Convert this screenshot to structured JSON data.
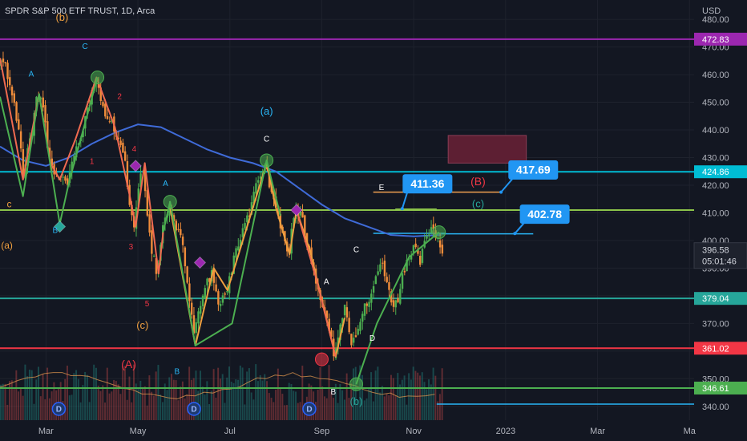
{
  "header": {
    "title": "SPDR S&P 500 ETF TRUST, 1D, Arca"
  },
  "chart_data": {
    "type": "candlestick",
    "currency": "USD",
    "y_range": [
      335,
      487
    ],
    "y_ticks": [
      340,
      350,
      360,
      370,
      380,
      390,
      400,
      410,
      420,
      430,
      440,
      450,
      460,
      470,
      480
    ],
    "x_ticks": [
      {
        "label": "Mar",
        "t": 1.0
      },
      {
        "label": "May",
        "t": 3.0
      },
      {
        "label": "Jul",
        "t": 5.0
      },
      {
        "label": "Sep",
        "t": 7.0
      },
      {
        "label": "Nov",
        "t": 9.0
      },
      {
        "label": "2023",
        "t": 11.0
      },
      {
        "label": "Mar",
        "t": 13.0
      },
      {
        "label": "Ma",
        "t": 15.0
      }
    ],
    "x_range": [
      0,
      15.1
    ],
    "last_data_t": 10.2,
    "price_path": [
      [
        0.0,
        463
      ],
      [
        0.12,
        466
      ],
      [
        0.3,
        452
      ],
      [
        0.45,
        440
      ],
      [
        0.52,
        422
      ],
      [
        0.7,
        438
      ],
      [
        0.85,
        453
      ],
      [
        1.0,
        446
      ],
      [
        1.1,
        428
      ],
      [
        1.3,
        424
      ],
      [
        1.5,
        421
      ],
      [
        1.65,
        431
      ],
      [
        1.8,
        437
      ],
      [
        2.0,
        452
      ],
      [
        2.12,
        459
      ],
      [
        2.3,
        447
      ],
      [
        2.5,
        441
      ],
      [
        2.6,
        437
      ],
      [
        2.75,
        427
      ],
      [
        2.85,
        414
      ],
      [
        2.95,
        405
      ],
      [
        3.1,
        428
      ],
      [
        3.2,
        415
      ],
      [
        3.3,
        398
      ],
      [
        3.45,
        388
      ],
      [
        3.55,
        403
      ],
      [
        3.7,
        412
      ],
      [
        3.85,
        405
      ],
      [
        4.0,
        398
      ],
      [
        4.15,
        380
      ],
      [
        4.25,
        365
      ],
      [
        4.35,
        375
      ],
      [
        4.5,
        385
      ],
      [
        4.65,
        388
      ],
      [
        4.8,
        375
      ],
      [
        4.95,
        382
      ],
      [
        5.1,
        392
      ],
      [
        5.3,
        403
      ],
      [
        5.45,
        410
      ],
      [
        5.6,
        419
      ],
      [
        5.8,
        428
      ],
      [
        5.9,
        420
      ],
      [
        6.0,
        412
      ],
      [
        6.15,
        405
      ],
      [
        6.3,
        395
      ],
      [
        6.45,
        411
      ],
      [
        6.6,
        408
      ],
      [
        6.75,
        396
      ],
      [
        6.9,
        385
      ],
      [
        7.05,
        375
      ],
      [
        7.2,
        367
      ],
      [
        7.3,
        358
      ],
      [
        7.45,
        372
      ],
      [
        7.55,
        377
      ],
      [
        7.65,
        361
      ],
      [
        7.75,
        366
      ],
      [
        7.9,
        374
      ],
      [
        8.05,
        379
      ],
      [
        8.2,
        387
      ],
      [
        8.35,
        392
      ],
      [
        8.5,
        380
      ],
      [
        8.65,
        376
      ],
      [
        8.75,
        385
      ],
      [
        8.9,
        394
      ],
      [
        9.05,
        398
      ],
      [
        9.15,
        392
      ],
      [
        9.3,
        401
      ],
      [
        9.45,
        404
      ],
      [
        9.55,
        401
      ],
      [
        9.65,
        396.58
      ]
    ],
    "moving_average": [
      [
        0.0,
        434
      ],
      [
        0.5,
        429
      ],
      [
        1.0,
        427
      ],
      [
        1.5,
        430
      ],
      [
        2.0,
        435
      ],
      [
        2.5,
        439
      ],
      [
        3.0,
        442
      ],
      [
        3.5,
        441
      ],
      [
        4.0,
        437
      ],
      [
        4.5,
        433
      ],
      [
        5.0,
        430
      ],
      [
        5.5,
        428
      ],
      [
        6.0,
        425
      ],
      [
        6.5,
        419
      ],
      [
        7.0,
        413
      ],
      [
        7.5,
        408
      ],
      [
        8.0,
        405
      ],
      [
        8.5,
        402
      ],
      [
        9.0,
        401.5
      ],
      [
        9.6,
        402
      ]
    ],
    "horizontal_levels": [
      {
        "value": 472.83,
        "label": "472.83",
        "color": "#9c27b0"
      },
      {
        "value": 424.86,
        "label": "424.86",
        "color": "#00bcd4"
      },
      {
        "value": 411,
        "label": "",
        "color": "#8bc34a"
      },
      {
        "value": 379.04,
        "label": "379.04",
        "color": "#26a69a"
      },
      {
        "value": 361.02,
        "label": "361.02",
        "color": "#f23645"
      },
      {
        "value": 346.61,
        "label": "346.61",
        "color": "#4caf50"
      }
    ],
    "segment_levels": [
      {
        "value": 417.5,
        "t_start": 8.12,
        "t_end": 10.9,
        "color": "#f0a050"
      },
      {
        "value": 411.36,
        "t_start": 8.6,
        "t_end": 9.5,
        "color": "#8bc34a"
      },
      {
        "value": 402.6,
        "t_start": 8.12,
        "t_end": 9.7,
        "color": "#29b6f6"
      },
      {
        "value": 402.4,
        "t_start": 9.6,
        "t_end": 11.6,
        "color": "#29b6f6"
      },
      {
        "value": 340.8,
        "t_start": 9.5,
        "t_end": 15.1,
        "color": "#29b6f6"
      }
    ],
    "zone": {
      "t_start": 9.75,
      "t_end": 11.45,
      "high": 438,
      "low": 428,
      "color": "#5d1f33"
    },
    "wave_paths": [
      {
        "color": "#f06a50",
        "points": [
          [
            0.0,
            466
          ],
          [
            0.5,
            422
          ],
          [
            0.85,
            453
          ],
          [
            1.1,
            428
          ],
          [
            1.3,
            422
          ],
          [
            1.65,
            437
          ],
          [
            2.1,
            459
          ],
          [
            2.5,
            441
          ],
          [
            2.85,
            414
          ],
          [
            2.95,
            405
          ],
          [
            3.15,
            428
          ],
          [
            3.45,
            388
          ],
          [
            3.55,
            403
          ]
        ]
      },
      {
        "color": "#4caf50",
        "points": [
          [
            0.0,
            452
          ],
          [
            0.5,
            416
          ],
          [
            0.85,
            453
          ],
          [
            1.3,
            406
          ],
          [
            1.5,
            421
          ],
          [
            2.12,
            459
          ]
        ]
      },
      {
        "color": "#f0a040",
        "points": [
          [
            3.7,
            412
          ],
          [
            4.25,
            362
          ],
          [
            4.65,
            390
          ],
          [
            4.95,
            382
          ],
          [
            5.8,
            428
          ],
          [
            6.0,
            412
          ],
          [
            6.3,
            395
          ],
          [
            6.45,
            411
          ],
          [
            6.75,
            396
          ],
          [
            7.3,
            358
          ],
          [
            7.5,
            372
          ]
        ]
      },
      {
        "color": "#4caf50",
        "points": [
          [
            3.55,
            403
          ],
          [
            3.7,
            414
          ],
          [
            4.25,
            362
          ],
          [
            5.05,
            370
          ],
          [
            5.8,
            429
          ],
          [
            6.1,
            409
          ]
        ]
      },
      {
        "color": "#f06a50",
        "points": [
          [
            6.45,
            411
          ],
          [
            6.9,
            385
          ],
          [
            7.3,
            358
          ]
        ]
      },
      {
        "color": "#4caf50",
        "points": [
          [
            7.75,
            348
          ],
          [
            8.2,
            370
          ],
          [
            8.9,
            394
          ],
          [
            9.55,
            403
          ]
        ]
      }
    ],
    "markers": [
      {
        "t": 2.12,
        "v": 459,
        "shape": "circle",
        "color": "#4caf50"
      },
      {
        "t": 3.7,
        "v": 414,
        "shape": "circle",
        "color": "#4caf50"
      },
      {
        "t": 5.8,
        "v": 429,
        "shape": "circle",
        "color": "#4caf50"
      },
      {
        "t": 9.55,
        "v": 403,
        "shape": "circle",
        "color": "#4caf50"
      },
      {
        "t": 7.0,
        "v": 357,
        "shape": "circle",
        "color": "#f23645"
      },
      {
        "t": 7.75,
        "v": 348,
        "shape": "circle",
        "color": "#4caf50"
      },
      {
        "t": 2.95,
        "v": 427,
        "shape": "diamond",
        "color": "#9c27b0"
      },
      {
        "t": 4.35,
        "v": 392,
        "shape": "diamond",
        "color": "#9c27b0"
      },
      {
        "t": 6.45,
        "v": 411,
        "shape": "diamond",
        "color": "#9c27b0"
      },
      {
        "t": 1.3,
        "v": 405,
        "shape": "diamond",
        "color": "#26a69a"
      }
    ],
    "wave_labels": [
      {
        "text": "(b)",
        "t": 1.35,
        "v": 480.5,
        "color": "#f0a040",
        "size": 13
      },
      {
        "text": "C",
        "t": 1.85,
        "v": 470,
        "color": "#29b6f6",
        "size": 10
      },
      {
        "text": "A",
        "t": 0.68,
        "v": 460,
        "color": "#29b6f6",
        "size": 10
      },
      {
        "text": "2",
        "t": 2.6,
        "v": 452,
        "color": "#f23645",
        "size": 10
      },
      {
        "text": "1",
        "t": 2.0,
        "v": 428.5,
        "color": "#f23645",
        "size": 10
      },
      {
        "text": "4",
        "t": 2.92,
        "v": 433,
        "color": "#f23645",
        "size": 10
      },
      {
        "text": "3",
        "t": 2.85,
        "v": 397.5,
        "color": "#f23645",
        "size": 10
      },
      {
        "text": "5",
        "t": 3.2,
        "v": 377,
        "color": "#f23645",
        "size": 10
      },
      {
        "text": "(c)",
        "t": 3.1,
        "v": 369,
        "color": "#f0a040",
        "size": 13
      },
      {
        "text": "c",
        "t": 0.2,
        "v": 413,
        "color": "#f0a040",
        "size": 12
      },
      {
        "text": "(a)",
        "t": 0.15,
        "v": 398,
        "color": "#f0a040",
        "size": 12
      },
      {
        "text": "B",
        "t": 1.2,
        "v": 403.5,
        "color": "#29b6f6",
        "size": 10
      },
      {
        "text": "A",
        "t": 3.6,
        "v": 420.5,
        "color": "#29b6f6",
        "size": 10
      },
      {
        "text": "(a)",
        "t": 5.8,
        "v": 446.5,
        "color": "#29b6f6",
        "size": 13
      },
      {
        "text": "C",
        "t": 5.8,
        "v": 436.5,
        "color": "#ffffff",
        "size": 10
      },
      {
        "text": "(A)",
        "t": 2.8,
        "v": 355,
        "color": "#f23645",
        "size": 14
      },
      {
        "text": "B",
        "t": 3.85,
        "v": 352.5,
        "color": "#29b6f6",
        "size": 10
      },
      {
        "text": "A",
        "t": 7.1,
        "v": 385,
        "color": "#ffffff",
        "size": 10
      },
      {
        "text": "C",
        "t": 7.75,
        "v": 396.5,
        "color": "#ffffff",
        "size": 10
      },
      {
        "text": "D",
        "t": 8.1,
        "v": 364.5,
        "color": "#ffffff",
        "size": 10
      },
      {
        "text": "B",
        "t": 7.25,
        "v": 345,
        "color": "#ffffff",
        "size": 10
      },
      {
        "text": "(b)",
        "t": 7.75,
        "v": 341.5,
        "color": "#26a69a",
        "size": 13
      },
      {
        "text": "E",
        "t": 8.3,
        "v": 419,
        "color": "#ffffff",
        "size": 10
      },
      {
        "text": "(B)",
        "t": 10.4,
        "v": 421,
        "color": "#f23645",
        "size": 14
      },
      {
        "text": "(c)",
        "t": 10.4,
        "v": 413,
        "color": "#26a69a",
        "size": 13
      }
    ],
    "callouts": [
      {
        "text": "411.36",
        "t": 9.3,
        "v": 420.5,
        "color": "#2196f3",
        "pointer_t": 8.75,
        "pointer_v": 411.5
      },
      {
        "text": "417.69",
        "t": 11.6,
        "v": 425.5,
        "color": "#2196f3",
        "pointer_t": 10.9,
        "pointer_v": 417.5
      },
      {
        "text": "402.78",
        "t": 11.85,
        "v": 409.5,
        "color": "#2196f3",
        "pointer_t": 11.2,
        "pointer_v": 402.5
      }
    ],
    "price_tag": {
      "value": 396.58,
      "label": "396.58",
      "countdown": "05:01:46"
    },
    "dividend_markers": [
      {
        "t": 1.28,
        "label": "D"
      },
      {
        "t": 4.22,
        "label": "D"
      },
      {
        "t": 6.73,
        "label": "D"
      }
    ]
  }
}
